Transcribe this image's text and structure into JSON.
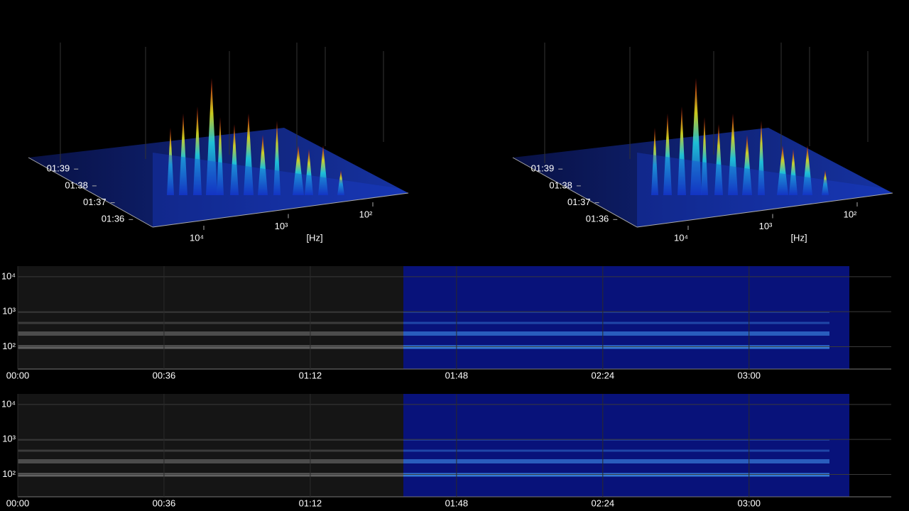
{
  "chart_data": [
    {
      "type": "surface3d",
      "axis_label": "[Hz]",
      "xscale": "log",
      "xlim": [
        20,
        20000
      ],
      "xticks": [
        {
          "value": 10000,
          "label": "10⁴"
        },
        {
          "value": 1000,
          "label": "10³"
        },
        {
          "value": 100,
          "label": "10²"
        }
      ],
      "ylim": [
        95,
        100
      ],
      "yticks": [
        {
          "value": 96,
          "label": "01:36"
        },
        {
          "value": 97,
          "label": "01:37"
        },
        {
          "value": 98,
          "label": "01:38"
        },
        {
          "value": 99,
          "label": "01:39"
        }
      ]
    },
    {
      "type": "surface3d",
      "axis_label": "[Hz]",
      "xscale": "log",
      "xlim": [
        20,
        20000
      ],
      "xticks": [
        {
          "value": 10000,
          "label": "10⁴"
        },
        {
          "value": 1000,
          "label": "10³"
        },
        {
          "value": 100,
          "label": "10²"
        }
      ],
      "ylim": [
        95,
        100
      ],
      "yticks": [
        {
          "value": 96,
          "label": "01:36"
        },
        {
          "value": 97,
          "label": "01:37"
        },
        {
          "value": 98,
          "label": "01:38"
        },
        {
          "value": 99,
          "label": "01:39"
        }
      ]
    },
    {
      "type": "spectrogram",
      "xlim": [
        0,
        215
      ],
      "xticks": [
        {
          "value": 0,
          "label": "00:00"
        },
        {
          "value": 36,
          "label": "00:36"
        },
        {
          "value": 72,
          "label": "01:12"
        },
        {
          "value": 108,
          "label": "01:48"
        },
        {
          "value": 144,
          "label": "02:24"
        },
        {
          "value": 180,
          "label": "03:00"
        }
      ],
      "yscale": "log",
      "ylim": [
        23,
        20000
      ],
      "yticks": [
        {
          "value": 100,
          "label": "10²"
        },
        {
          "value": 1000,
          "label": "10³"
        },
        {
          "value": 10000,
          "label": "10⁴"
        }
      ],
      "grid": true
    },
    {
      "type": "spectrogram",
      "xlim": [
        0,
        215
      ],
      "xticks": [
        {
          "value": 0,
          "label": "00:00"
        },
        {
          "value": 36,
          "label": "00:36"
        },
        {
          "value": 72,
          "label": "01:12"
        },
        {
          "value": 108,
          "label": "01:48"
        },
        {
          "value": 144,
          "label": "02:24"
        },
        {
          "value": 180,
          "label": "03:00"
        }
      ],
      "yscale": "log",
      "ylim": [
        23,
        20000
      ],
      "yticks": [
        {
          "value": 100,
          "label": "10²"
        },
        {
          "value": 1000,
          "label": "10³"
        },
        {
          "value": 10000,
          "label": "10⁴"
        }
      ],
      "grid": true
    }
  ]
}
